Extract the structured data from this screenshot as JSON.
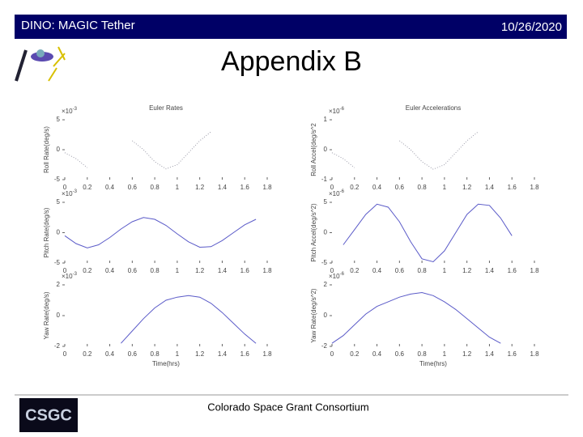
{
  "slide": {
    "header": "DINO: MAGIC Tether",
    "date": "10/26/2020",
    "title": "Appendix B",
    "footer": "Colorado Space Grant Consortium",
    "logo_text": "CSGC"
  },
  "chart_data": [
    {
      "type": "line",
      "title": "Euler Rates",
      "ylabel": "Roll Rate(deg/s)",
      "multiplier": "×10",
      "multiplier_exp": "-3",
      "color": "#9a9aa8",
      "dotted": true,
      "x": [
        0,
        0.1,
        0.2,
        0.3,
        0.4,
        0.5,
        0.6,
        0.7,
        0.8,
        0.9,
        1,
        1.1,
        1.2,
        1.3,
        1.4,
        1.5,
        1.6,
        1.7,
        1.8
      ],
      "values": [
        -0.5,
        -1.5,
        -3,
        null,
        null,
        null,
        1.5,
        0,
        -2,
        -3.2,
        -2.5,
        -0.5,
        1.5,
        3,
        null,
        null,
        null,
        null,
        null
      ],
      "xlim": [
        0,
        1.8
      ],
      "xticks": [
        0,
        0.2,
        0.4,
        0.6,
        0.8,
        1,
        1.2,
        1.4,
        1.6,
        1.8
      ],
      "ylim": [
        -5,
        5
      ],
      "yticks": [
        -5,
        0,
        5
      ]
    },
    {
      "type": "line",
      "title": "Euler Accelerations",
      "ylabel": "Roll Accel(deg/s^2",
      "multiplier": "×10",
      "multiplier_exp": "-6",
      "color": "#9a9aa8",
      "dotted": true,
      "x": [
        0,
        0.1,
        0.2,
        0.3,
        0.4,
        0.5,
        0.6,
        0.7,
        0.8,
        0.9,
        1,
        1.1,
        1.2,
        1.3,
        1.4,
        1.5,
        1.6,
        1.7,
        1.8
      ],
      "values": [
        -0.1,
        -0.3,
        -0.6,
        null,
        null,
        null,
        0.3,
        0,
        -0.4,
        -0.65,
        -0.5,
        -0.1,
        0.3,
        0.6,
        null,
        null,
        null,
        null,
        null
      ],
      "xlim": [
        0,
        1.8
      ],
      "xticks": [
        0,
        0.2,
        0.4,
        0.6,
        0.8,
        1,
        1.2,
        1.4,
        1.6,
        1.8
      ],
      "ylim": [
        -1,
        1
      ],
      "yticks": [
        -1,
        0,
        1
      ]
    },
    {
      "type": "line",
      "ylabel": "Pitch Rate(deg/s)",
      "multiplier": "×10",
      "multiplier_exp": "-3",
      "color": "#5a5ac8",
      "x": [
        0,
        0.1,
        0.2,
        0.3,
        0.4,
        0.5,
        0.6,
        0.7,
        0.8,
        0.9,
        1,
        1.1,
        1.2,
        1.3,
        1.4,
        1.5,
        1.6,
        1.7,
        1.8
      ],
      "values": [
        -0.5,
        -1.8,
        -2.5,
        -2,
        -0.8,
        0.6,
        1.8,
        2.5,
        2.2,
        1.2,
        -0.2,
        -1.5,
        -2.4,
        -2.3,
        -1.3,
        0,
        1.3,
        2.2,
        null
      ],
      "xlim": [
        0,
        1.8
      ],
      "xticks": [
        0,
        0.2,
        0.4,
        0.6,
        0.8,
        1,
        1.2,
        1.4,
        1.6,
        1.8
      ],
      "ylim": [
        -5,
        5
      ],
      "yticks": [
        -5,
        0,
        5
      ]
    },
    {
      "type": "line",
      "ylabel": "Pitch Accel(deg/s^2)",
      "multiplier": "×10",
      "multiplier_exp": "-6",
      "color": "#5a5ac8",
      "x": [
        0,
        0.1,
        0.2,
        0.3,
        0.4,
        0.5,
        0.6,
        0.7,
        0.8,
        0.9,
        1,
        1.1,
        1.2,
        1.3,
        1.4,
        1.5,
        1.6,
        1.7,
        1.8
      ],
      "values": [
        null,
        -2,
        0.5,
        3,
        4.7,
        4.2,
        1.8,
        -1.5,
        -4.3,
        -4.8,
        -3,
        0,
        3,
        4.7,
        4.5,
        2.4,
        -0.5,
        null,
        null
      ],
      "xlim": [
        0,
        1.8
      ],
      "xticks": [
        0,
        0.2,
        0.4,
        0.6,
        0.8,
        1,
        1.2,
        1.4,
        1.6,
        1.8
      ],
      "ylim": [
        -5,
        5
      ],
      "yticks": [
        -5,
        0,
        5
      ]
    },
    {
      "type": "line",
      "ylabel": "Yaw Rate(deg/s)",
      "xlabel": "Time(hrs)",
      "multiplier": "×10",
      "multiplier_exp": "-3",
      "color": "#5a5ac8",
      "x": [
        0,
        0.1,
        0.2,
        0.3,
        0.4,
        0.5,
        0.6,
        0.7,
        0.8,
        0.9,
        1,
        1.1,
        1.2,
        1.3,
        1.4,
        1.5,
        1.6,
        1.7,
        1.8
      ],
      "values": [
        null,
        null,
        null,
        null,
        null,
        -1.8,
        -1,
        -0.2,
        0.5,
        1,
        1.2,
        1.3,
        1.2,
        0.8,
        0.2,
        -0.5,
        -1.2,
        -1.8,
        null
      ],
      "xlim": [
        0,
        1.8
      ],
      "xticks": [
        0,
        0.2,
        0.4,
        0.6,
        0.8,
        1,
        1.2,
        1.4,
        1.6,
        1.8
      ],
      "ylim": [
        -2,
        2
      ],
      "yticks": [
        -2,
        0,
        2
      ]
    },
    {
      "type": "line",
      "ylabel": "Yaw Rate(deg/s^2)",
      "xlabel": "Time(hrs)",
      "multiplier": "×10",
      "multiplier_exp": "-6",
      "color": "#5a5ac8",
      "x": [
        0,
        0.1,
        0.2,
        0.3,
        0.4,
        0.5,
        0.6,
        0.7,
        0.8,
        0.9,
        1,
        1.1,
        1.2,
        1.3,
        1.4,
        1.5,
        1.6,
        1.7,
        1.8
      ],
      "values": [
        -1.8,
        -1.3,
        -0.6,
        0.1,
        0.6,
        0.9,
        1.2,
        1.4,
        1.5,
        1.3,
        0.9,
        0.4,
        -0.2,
        -0.8,
        -1.4,
        -1.8,
        null,
        null,
        null
      ],
      "xlim": [
        0,
        1.8
      ],
      "xticks": [
        0,
        0.2,
        0.4,
        0.6,
        0.8,
        1,
        1.2,
        1.4,
        1.6,
        1.8
      ],
      "ylim": [
        -2,
        2
      ],
      "yticks": [
        -2,
        0,
        2
      ]
    }
  ]
}
